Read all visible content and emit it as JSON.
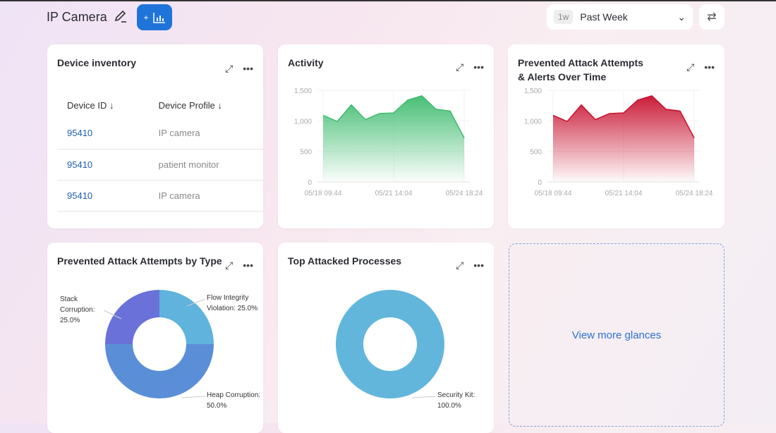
{
  "header": {
    "title": "IP Camera",
    "add_label": "+",
    "range_badge": "1w",
    "range_value": "Past Week"
  },
  "cards": {
    "inventory": {
      "title": "Device inventory",
      "columns": [
        "Device ID ↓",
        "Device Profile ↓"
      ],
      "rows": [
        {
          "id": "95410",
          "profile": "IP camera"
        },
        {
          "id": "95410",
          "profile": "patient monitor"
        },
        {
          "id": "95410",
          "profile": "IP camera"
        }
      ]
    },
    "activity": {
      "title": "Activity"
    },
    "prevented_time": {
      "title_line1": "Prevented Attack Attempts",
      "title_line2": "& Alerts Over Time"
    },
    "by_type": {
      "title": "Prevented Attack Attempts by Type"
    },
    "processes": {
      "title": "Top Attacked Processes"
    },
    "more": {
      "label": "View more glances"
    }
  },
  "chart_data": [
    {
      "type": "area",
      "title": "Activity",
      "color": "#3dbb6e",
      "ylim": [
        0,
        1500
      ],
      "yticks": [
        "0",
        "500",
        "1,000",
        "1,500"
      ],
      "xticks": [
        "05/18 09:44",
        "05/21 14:04",
        "05/24 18:24"
      ],
      "values": [
        1090,
        990,
        1260,
        1020,
        1120,
        1130,
        1340,
        1410,
        1190,
        1160,
        720
      ]
    },
    {
      "type": "area",
      "title": "Prevented Attack Attempts & Alerts Over Time",
      "color": "#c8102e",
      "ylim": [
        0,
        1500
      ],
      "yticks": [
        "0",
        "500",
        "1,000",
        "1,500"
      ],
      "xticks": [
        "05/18 09:44",
        "05/21 14:04",
        "05/24 18:24"
      ],
      "values": [
        1090,
        990,
        1260,
        1020,
        1120,
        1130,
        1340,
        1410,
        1190,
        1160,
        720
      ]
    },
    {
      "type": "pie",
      "title": "Prevented Attack Attempts by Type",
      "slices": [
        {
          "name": "Flow Integrity Violation",
          "value": 25.0,
          "label1": "Flow Integrity",
          "label2": "Violation: 25.0%",
          "color": "#5fb3dc"
        },
        {
          "name": "Heap Corruption",
          "value": 50.0,
          "label1": "Heap Corruption:",
          "label2": "50.0%",
          "color": "#5a8fd8"
        },
        {
          "name": "Stack Corruption",
          "value": 25.0,
          "label1": "Stack",
          "label2": "Corruption:",
          "label3": "25.0%",
          "color": "#6a72d9"
        }
      ]
    },
    {
      "type": "pie",
      "title": "Top Attacked Processes",
      "slices": [
        {
          "name": "Security Kit",
          "value": 100.0,
          "label1": "Security Kit:",
          "label2": "100.0%",
          "color": "#63b6db"
        }
      ]
    }
  ]
}
